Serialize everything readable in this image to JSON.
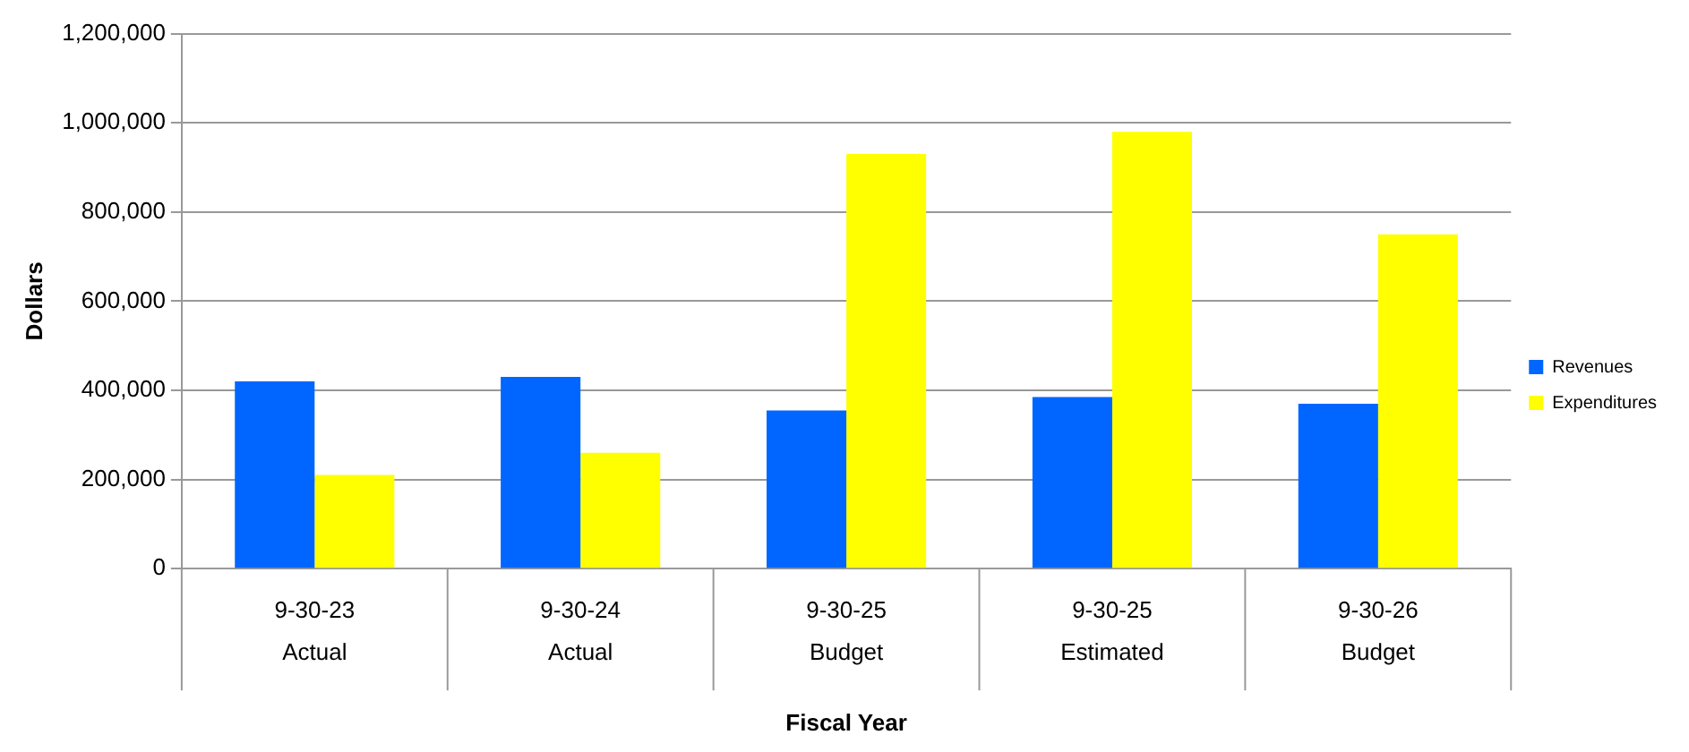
{
  "chart_data": {
    "type": "bar",
    "xlabel": "Fiscal Year",
    "ylabel": "Dollars",
    "categories": [
      "9-30-23\nActual",
      "9-30-24\nActual",
      "9-30-25\nBudget",
      "9-30-25\nEstimated",
      "9-30-26\nBudget"
    ],
    "series": [
      {
        "name": "Revenues",
        "color": "#0066ff",
        "values": [
          420000,
          430000,
          355000,
          385000,
          370000
        ]
      },
      {
        "name": "Expenditures",
        "color": "#ffff00",
        "values": [
          210000,
          260000,
          930000,
          980000,
          750000
        ]
      }
    ],
    "ylim": [
      0,
      1200000
    ],
    "yticks": [
      0,
      {
        "value": 200000,
        "label": "200,000"
      },
      {
        "value": 400000,
        "label": "400,000"
      },
      {
        "value": 600000,
        "label": "600,000"
      },
      {
        "value": 800000,
        "label": "800,000"
      },
      {
        "value": 1000000,
        "label": "1,000,000"
      },
      {
        "value": 1200000,
        "label": "1,200,000"
      }
    ],
    "grid": "y",
    "legend": "right"
  }
}
